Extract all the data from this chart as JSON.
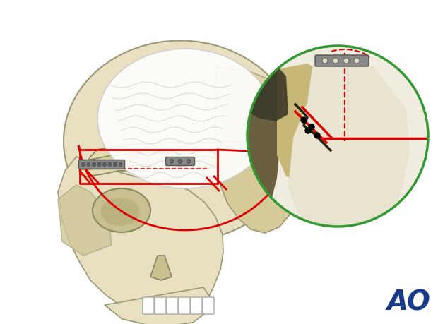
{
  "fig_width": 6.2,
  "fig_height": 4.59,
  "dpi": 100,
  "bg_color": "#ffffff",
  "skull_base_color": "#e8e0c0",
  "skull_shadow_color": "#c8b878",
  "brain_color": "#f0f0f0",
  "brain_outline_color": "#cccccc",
  "red_line_color": "#dd0000",
  "green_circle_color": "#339933",
  "plate_color": "#aaaaaa",
  "ao_color": "#1a3a8a",
  "ao_text": "AO",
  "ao_fontsize": 28
}
